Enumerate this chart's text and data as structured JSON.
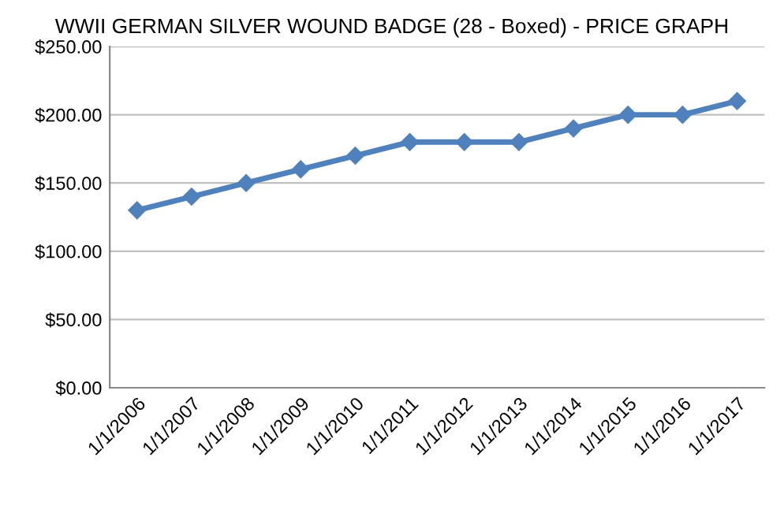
{
  "chart_data": {
    "type": "line",
    "title": "WWII GERMAN SILVER WOUND BADGE (28 - Boxed) - PRICE GRAPH",
    "categories": [
      "1/1/2006",
      "1/1/2007",
      "1/1/2008",
      "1/1/2009",
      "1/1/2010",
      "1/1/2011",
      "1/1/2012",
      "1/1/2013",
      "1/1/2014",
      "1/1/2015",
      "1/1/2016",
      "1/1/2017"
    ],
    "series": [
      {
        "color": "#4f81bd",
        "values": [
          130,
          140,
          150,
          160,
          170,
          180,
          180,
          180,
          190,
          200,
          200,
          210
        ]
      }
    ],
    "ylim": [
      0,
      250
    ],
    "yticks": [
      {
        "value": 0,
        "label": "$0.00"
      },
      {
        "value": 50,
        "label": "$50.00"
      },
      {
        "value": 100,
        "label": "$100.00"
      },
      {
        "value": 150,
        "label": "$150.00"
      },
      {
        "value": 200,
        "label": "$200.00"
      },
      {
        "value": 250,
        "label": "$250.00"
      }
    ],
    "grid": "y",
    "marker": "diamond",
    "line_style": "solid",
    "legend": false
  }
}
